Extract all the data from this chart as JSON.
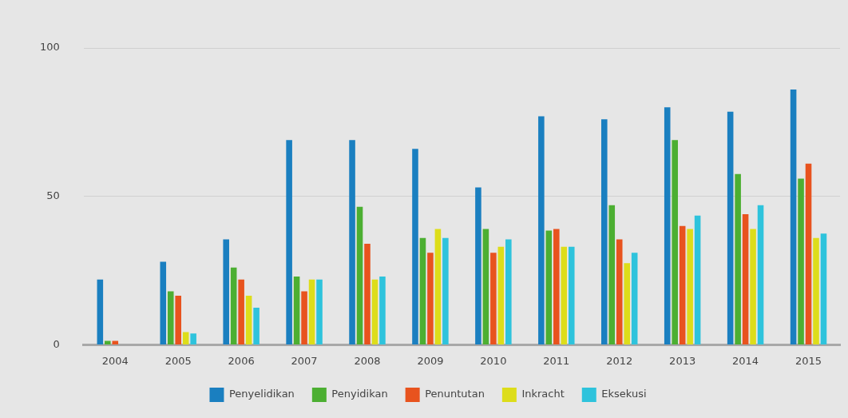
{
  "chart_data": {
    "type": "bar",
    "categories": [
      "2004",
      "2005",
      "2006",
      "2007",
      "2008",
      "2009",
      "2010",
      "2011",
      "2012",
      "2013",
      "2014",
      "2015"
    ],
    "series": [
      {
        "name": "Penyelidikan",
        "color": "#1a7fc0",
        "values": [
          22,
          28,
          35.5,
          69,
          69,
          66,
          53,
          77,
          76,
          80,
          78.5,
          86
        ]
      },
      {
        "name": "Penyidikan",
        "color": "#4caf32",
        "values": [
          1.3,
          18,
          26,
          23,
          46.5,
          36,
          39,
          38.5,
          47,
          69,
          57.5,
          56
        ]
      },
      {
        "name": "Penuntutan",
        "color": "#e8531e",
        "values": [
          1.3,
          16.5,
          22,
          18,
          34,
          31,
          31,
          39,
          35.5,
          40,
          44,
          61
        ]
      },
      {
        "name": "Inkracht",
        "color": "#dddd1a",
        "values": [
          0,
          4.3,
          16.5,
          22,
          22,
          39,
          33,
          33,
          27.5,
          39,
          39,
          36
        ]
      },
      {
        "name": "Eksekusi",
        "color": "#2ec3dc",
        "values": [
          0,
          3.8,
          12.5,
          22,
          23,
          36,
          35.5,
          33,
          31,
          43.5,
          47,
          37.5
        ]
      }
    ],
    "ylim": [
      0,
      100
    ],
    "yticks": [
      0,
      50,
      100
    ],
    "grid": "y",
    "legend": "bottom"
  }
}
